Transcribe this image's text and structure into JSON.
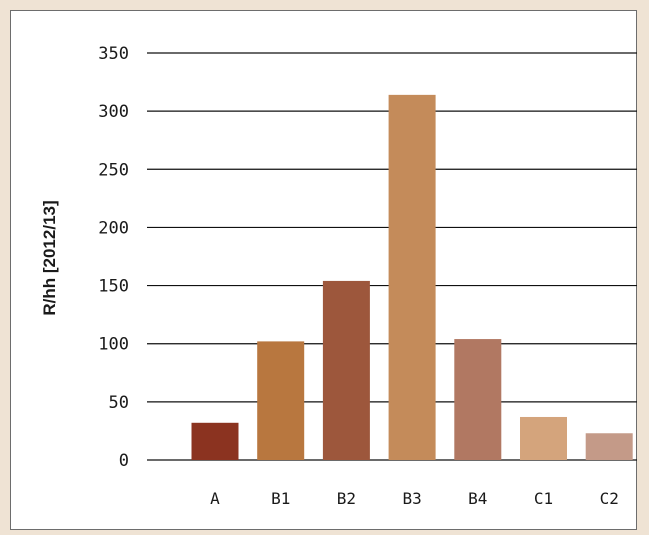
{
  "chart_data": {
    "type": "bar",
    "categories": [
      "A",
      "B1",
      "B2",
      "B3",
      "B4",
      "C1",
      "C2"
    ],
    "values": [
      32,
      102,
      154,
      314,
      104,
      37,
      23
    ],
    "colors": [
      "#8b3320",
      "#b8773f",
      "#9d573c",
      "#c48b5a",
      "#b17862",
      "#d4a47c",
      "#c49a88"
    ],
    "ylabel": "R/hh [2012/13]",
    "xlabel": "",
    "title": "",
    "ylim": [
      0,
      350
    ],
    "yticks": [
      0,
      50,
      100,
      150,
      200,
      250,
      300,
      350
    ],
    "grid": true,
    "legend": "none"
  }
}
